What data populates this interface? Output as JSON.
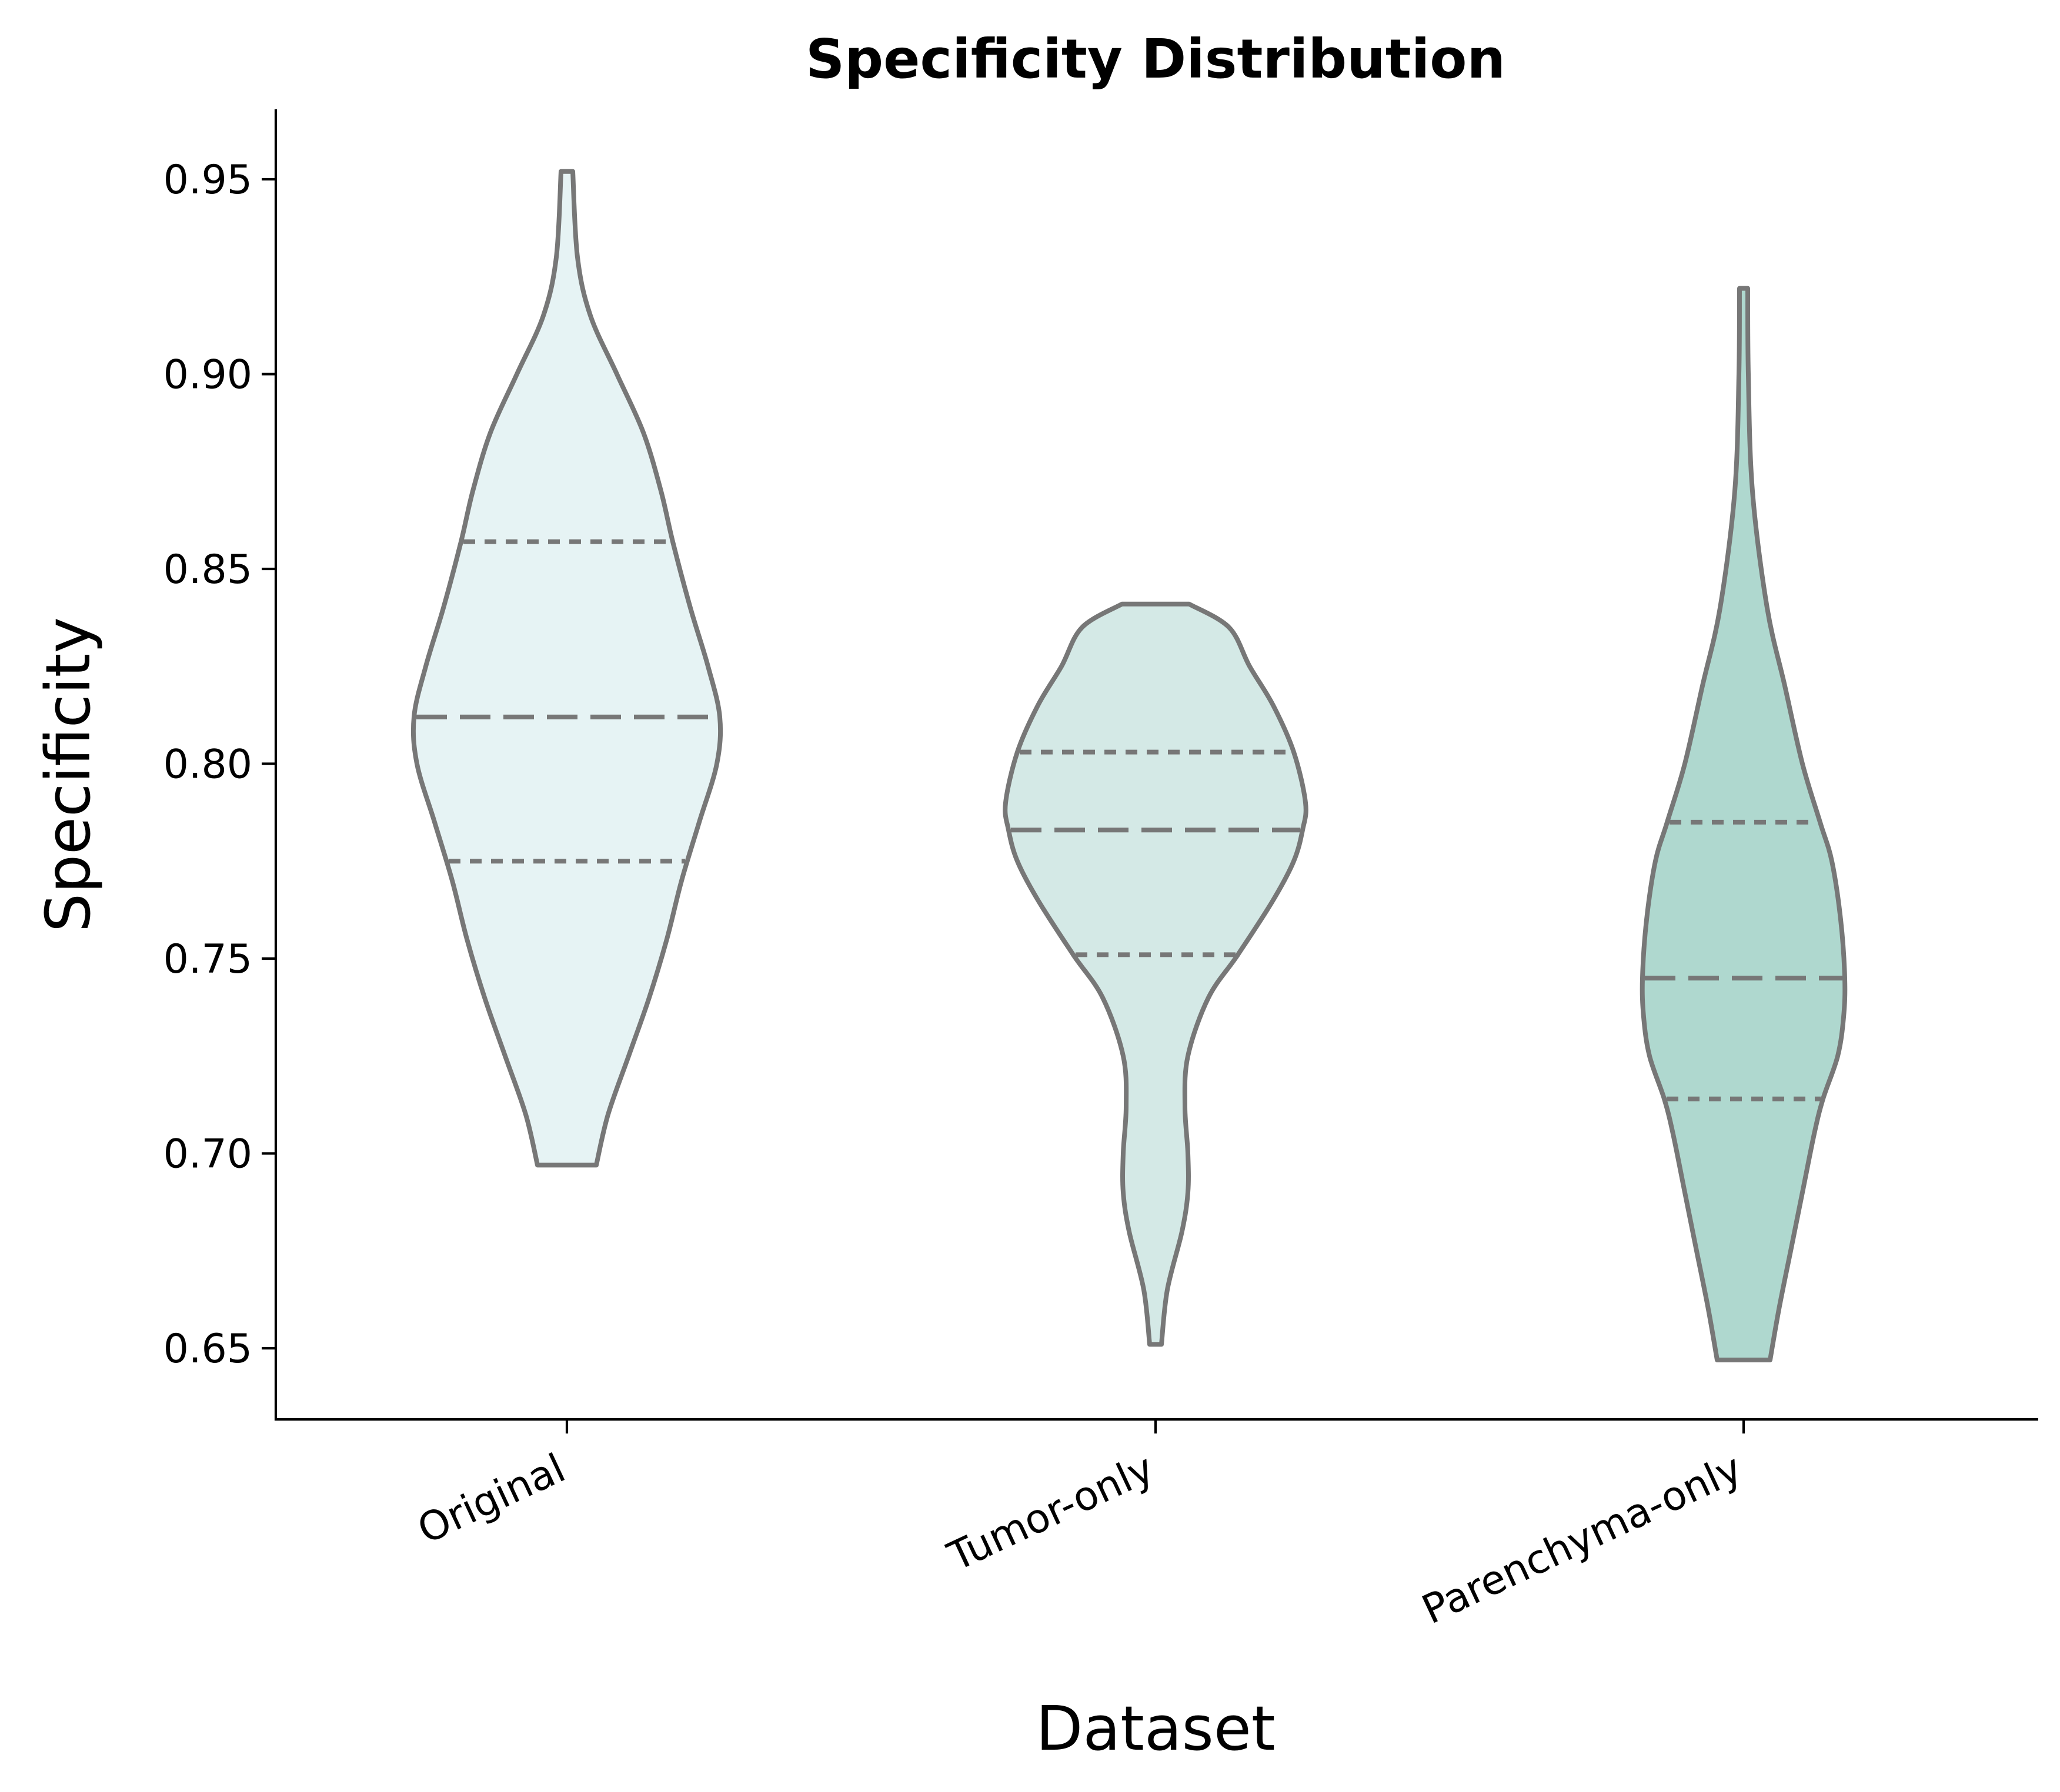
{
  "chart_data": {
    "type": "violin",
    "title": "Specificity Distribution",
    "xlabel": "Dataset",
    "ylabel": "Specificity",
    "ylim": [
      0.632,
      0.968
    ],
    "yticks": [
      0.65,
      0.7,
      0.75,
      0.8,
      0.85,
      0.9,
      0.95
    ],
    "ytick_labels": [
      "0.65",
      "0.70",
      "0.75",
      "0.80",
      "0.85",
      "0.90",
      "0.95"
    ],
    "grid": false,
    "categories": [
      "Original",
      "Tumor-only",
      "Parenchyma-only"
    ],
    "series": [
      {
        "category": "Original",
        "color": "#e6f3f4",
        "min": 0.697,
        "max": 0.952,
        "q1": 0.775,
        "median": 0.812,
        "q3": 0.857,
        "density": [
          [
            0.697,
            0.05
          ],
          [
            0.71,
            0.07
          ],
          [
            0.725,
            0.105
          ],
          [
            0.74,
            0.14
          ],
          [
            0.755,
            0.17
          ],
          [
            0.77,
            0.195
          ],
          [
            0.785,
            0.225
          ],
          [
            0.8,
            0.255
          ],
          [
            0.812,
            0.26
          ],
          [
            0.825,
            0.24
          ],
          [
            0.84,
            0.21
          ],
          [
            0.857,
            0.18
          ],
          [
            0.87,
            0.16
          ],
          [
            0.885,
            0.13
          ],
          [
            0.9,
            0.085
          ],
          [
            0.915,
            0.04
          ],
          [
            0.93,
            0.018
          ],
          [
            0.952,
            0.01
          ]
        ]
      },
      {
        "category": "Tumor-only",
        "color": "#d4e9e6",
        "min": 0.651,
        "max": 0.841,
        "q1": 0.751,
        "median": 0.783,
        "q3": 0.803,
        "density": [
          [
            0.651,
            0.01
          ],
          [
            0.665,
            0.02
          ],
          [
            0.68,
            0.045
          ],
          [
            0.69,
            0.055
          ],
          [
            0.7,
            0.055
          ],
          [
            0.712,
            0.05
          ],
          [
            0.725,
            0.055
          ],
          [
            0.74,
            0.09
          ],
          [
            0.751,
            0.14
          ],
          [
            0.765,
            0.2
          ],
          [
            0.775,
            0.235
          ],
          [
            0.783,
            0.25
          ],
          [
            0.79,
            0.255
          ],
          [
            0.803,
            0.235
          ],
          [
            0.815,
            0.2
          ],
          [
            0.825,
            0.16
          ],
          [
            0.835,
            0.125
          ],
          [
            0.841,
            0.057
          ]
        ]
      },
      {
        "category": "Parenchyma-only",
        "color": "#afd8cf",
        "min": 0.647,
        "max": 0.922,
        "q1": 0.714,
        "median": 0.745,
        "q3": 0.785,
        "density": [
          [
            0.647,
            0.045
          ],
          [
            0.66,
            0.06
          ],
          [
            0.675,
            0.08
          ],
          [
            0.69,
            0.1
          ],
          [
            0.705,
            0.12
          ],
          [
            0.714,
            0.135
          ],
          [
            0.725,
            0.16
          ],
          [
            0.735,
            0.17
          ],
          [
            0.745,
            0.172
          ],
          [
            0.76,
            0.165
          ],
          [
            0.775,
            0.15
          ],
          [
            0.785,
            0.13
          ],
          [
            0.8,
            0.1
          ],
          [
            0.82,
            0.07
          ],
          [
            0.84,
            0.04
          ],
          [
            0.87,
            0.015
          ],
          [
            0.9,
            0.008
          ],
          [
            0.922,
            0.007
          ]
        ]
      }
    ]
  }
}
